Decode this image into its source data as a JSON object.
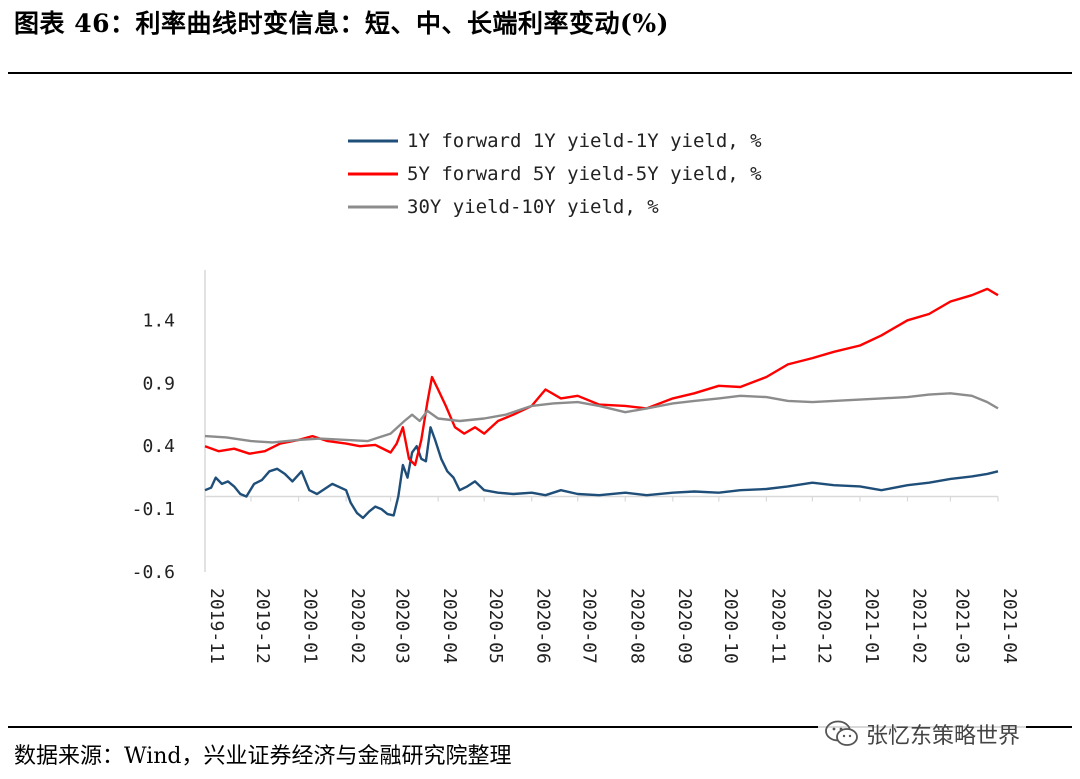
{
  "header": {
    "title": "图表 46：利率曲线时变信息：短、中、长端利率变动(%)"
  },
  "footer": {
    "source": "数据来源：Wind，兴业证券经济与金融研究院整理",
    "watermark": "张忆东策略世界",
    "watermark_icon": "wechat-icon"
  },
  "colors": {
    "series1": "#1f4e79",
    "series2": "#ff0000",
    "series3": "#8c8c8c",
    "axis": "#d9d9d9"
  },
  "chart_data": {
    "type": "line",
    "title": "",
    "xlabel": "",
    "ylabel": "",
    "ylim": [
      -0.6,
      1.8
    ],
    "yticks": [
      "1.4",
      "0.9",
      "0.4",
      "-0.1",
      "-0.6"
    ],
    "ytick_values": [
      1.4,
      0.9,
      0.4,
      -0.1,
      -0.6
    ],
    "xticks": [
      "2019-11",
      "2019-12",
      "2020-01",
      "2020-02",
      "2020-03",
      "2020-04",
      "2020-05",
      "2020-06",
      "2020-07",
      "2020-08",
      "2020-09",
      "2020-10",
      "2020-11",
      "2020-12",
      "2021-01",
      "2021-02",
      "2021-03",
      "2021-04"
    ],
    "legend_position": "top",
    "grid": false,
    "series": [
      {
        "name": "1Y forward 1Y yield-1Y yield, %",
        "color": "#1f4e79",
        "points": [
          [
            "2019-11-01",
            0.05
          ],
          [
            "2019-11-05",
            0.07
          ],
          [
            "2019-11-08",
            0.15
          ],
          [
            "2019-11-12",
            0.1
          ],
          [
            "2019-11-16",
            0.12
          ],
          [
            "2019-11-20",
            0.08
          ],
          [
            "2019-11-24",
            0.02
          ],
          [
            "2019-11-28",
            0.0
          ],
          [
            "2019-12-03",
            0.1
          ],
          [
            "2019-12-08",
            0.13
          ],
          [
            "2019-12-13",
            0.2
          ],
          [
            "2019-12-18",
            0.22
          ],
          [
            "2019-12-23",
            0.18
          ],
          [
            "2019-12-28",
            0.12
          ],
          [
            "2020-01-03",
            0.2
          ],
          [
            "2020-01-08",
            0.05
          ],
          [
            "2020-01-13",
            0.02
          ],
          [
            "2020-01-18",
            0.06
          ],
          [
            "2020-01-23",
            0.1
          ],
          [
            "2020-02-01",
            0.05
          ],
          [
            "2020-02-04",
            -0.05
          ],
          [
            "2020-02-08",
            -0.13
          ],
          [
            "2020-02-12",
            -0.17
          ],
          [
            "2020-02-16",
            -0.12
          ],
          [
            "2020-02-20",
            -0.08
          ],
          [
            "2020-02-24",
            -0.1
          ],
          [
            "2020-02-28",
            -0.14
          ],
          [
            "2020-03-03",
            -0.15
          ],
          [
            "2020-03-06",
            0.0
          ],
          [
            "2020-03-09",
            0.25
          ],
          [
            "2020-03-12",
            0.15
          ],
          [
            "2020-03-15",
            0.35
          ],
          [
            "2020-03-18",
            0.4
          ],
          [
            "2020-03-21",
            0.3
          ],
          [
            "2020-03-24",
            0.28
          ],
          [
            "2020-03-27",
            0.55
          ],
          [
            "2020-03-30",
            0.45
          ],
          [
            "2020-04-03",
            0.3
          ],
          [
            "2020-04-07",
            0.2
          ],
          [
            "2020-04-11",
            0.15
          ],
          [
            "2020-04-15",
            0.05
          ],
          [
            "2020-04-20",
            0.08
          ],
          [
            "2020-04-25",
            0.12
          ],
          [
            "2020-05-01",
            0.05
          ],
          [
            "2020-05-10",
            0.03
          ],
          [
            "2020-05-20",
            0.02
          ],
          [
            "2020-06-01",
            0.03
          ],
          [
            "2020-06-10",
            0.01
          ],
          [
            "2020-06-20",
            0.05
          ],
          [
            "2020-07-01",
            0.02
          ],
          [
            "2020-07-15",
            0.01
          ],
          [
            "2020-08-01",
            0.03
          ],
          [
            "2020-08-15",
            0.01
          ],
          [
            "2020-09-01",
            0.03
          ],
          [
            "2020-09-15",
            0.04
          ],
          [
            "2020-10-01",
            0.03
          ],
          [
            "2020-10-15",
            0.05
          ],
          [
            "2020-11-01",
            0.06
          ],
          [
            "2020-11-15",
            0.08
          ],
          [
            "2020-12-01",
            0.11
          ],
          [
            "2020-12-15",
            0.09
          ],
          [
            "2021-01-01",
            0.08
          ],
          [
            "2021-01-15",
            0.05
          ],
          [
            "2021-02-01",
            0.09
          ],
          [
            "2021-02-15",
            0.11
          ],
          [
            "2021-03-01",
            0.14
          ],
          [
            "2021-03-15",
            0.16
          ],
          [
            "2021-03-25",
            0.18
          ],
          [
            "2021-04-01",
            0.2
          ]
        ]
      },
      {
        "name": "5Y forward 5Y yield-5Y yield, %",
        "color": "#ff0000",
        "points": [
          [
            "2019-11-01",
            0.4
          ],
          [
            "2019-11-10",
            0.36
          ],
          [
            "2019-11-20",
            0.38
          ],
          [
            "2019-11-30",
            0.34
          ],
          [
            "2019-12-10",
            0.36
          ],
          [
            "2019-12-20",
            0.42
          ],
          [
            "2020-01-01",
            0.45
          ],
          [
            "2020-01-10",
            0.48
          ],
          [
            "2020-01-20",
            0.44
          ],
          [
            "2020-02-01",
            0.42
          ],
          [
            "2020-02-10",
            0.4
          ],
          [
            "2020-02-20",
            0.41
          ],
          [
            "2020-03-01",
            0.35
          ],
          [
            "2020-03-05",
            0.42
          ],
          [
            "2020-03-09",
            0.55
          ],
          [
            "2020-03-13",
            0.3
          ],
          [
            "2020-03-17",
            0.25
          ],
          [
            "2020-03-21",
            0.45
          ],
          [
            "2020-03-25",
            0.75
          ],
          [
            "2020-03-28",
            0.95
          ],
          [
            "2020-04-01",
            0.85
          ],
          [
            "2020-04-06",
            0.72
          ],
          [
            "2020-04-12",
            0.55
          ],
          [
            "2020-04-18",
            0.5
          ],
          [
            "2020-04-25",
            0.55
          ],
          [
            "2020-05-01",
            0.5
          ],
          [
            "2020-05-10",
            0.6
          ],
          [
            "2020-05-20",
            0.65
          ],
          [
            "2020-06-01",
            0.72
          ],
          [
            "2020-06-10",
            0.85
          ],
          [
            "2020-06-20",
            0.78
          ],
          [
            "2020-07-01",
            0.8
          ],
          [
            "2020-07-15",
            0.73
          ],
          [
            "2020-08-01",
            0.72
          ],
          [
            "2020-08-15",
            0.7
          ],
          [
            "2020-09-01",
            0.78
          ],
          [
            "2020-09-15",
            0.82
          ],
          [
            "2020-10-01",
            0.88
          ],
          [
            "2020-10-15",
            0.87
          ],
          [
            "2020-11-01",
            0.95
          ],
          [
            "2020-11-15",
            1.05
          ],
          [
            "2020-12-01",
            1.1
          ],
          [
            "2020-12-15",
            1.15
          ],
          [
            "2021-01-01",
            1.2
          ],
          [
            "2021-01-15",
            1.28
          ],
          [
            "2021-02-01",
            1.4
          ],
          [
            "2021-02-15",
            1.45
          ],
          [
            "2021-03-01",
            1.55
          ],
          [
            "2021-03-15",
            1.6
          ],
          [
            "2021-03-25",
            1.65
          ],
          [
            "2021-04-01",
            1.6
          ]
        ]
      },
      {
        "name": "30Y yield-10Y yield, %",
        "color": "#8c8c8c",
        "points": [
          [
            "2019-11-01",
            0.48
          ],
          [
            "2019-11-15",
            0.47
          ],
          [
            "2019-12-01",
            0.44
          ],
          [
            "2019-12-15",
            0.43
          ],
          [
            "2020-01-01",
            0.45
          ],
          [
            "2020-01-15",
            0.46
          ],
          [
            "2020-02-01",
            0.45
          ],
          [
            "2020-02-15",
            0.44
          ],
          [
            "2020-03-01",
            0.5
          ],
          [
            "2020-03-10",
            0.6
          ],
          [
            "2020-03-15",
            0.65
          ],
          [
            "2020-03-20",
            0.6
          ],
          [
            "2020-03-25",
            0.68
          ],
          [
            "2020-04-01",
            0.62
          ],
          [
            "2020-04-15",
            0.6
          ],
          [
            "2020-05-01",
            0.62
          ],
          [
            "2020-05-15",
            0.65
          ],
          [
            "2020-06-01",
            0.72
          ],
          [
            "2020-06-15",
            0.74
          ],
          [
            "2020-07-01",
            0.75
          ],
          [
            "2020-07-15",
            0.72
          ],
          [
            "2020-08-01",
            0.67
          ],
          [
            "2020-08-15",
            0.7
          ],
          [
            "2020-09-01",
            0.74
          ],
          [
            "2020-09-15",
            0.76
          ],
          [
            "2020-10-01",
            0.78
          ],
          [
            "2020-10-15",
            0.8
          ],
          [
            "2020-11-01",
            0.79
          ],
          [
            "2020-11-15",
            0.76
          ],
          [
            "2020-12-01",
            0.75
          ],
          [
            "2020-12-15",
            0.76
          ],
          [
            "2021-01-01",
            0.77
          ],
          [
            "2021-01-15",
            0.78
          ],
          [
            "2021-02-01",
            0.79
          ],
          [
            "2021-02-15",
            0.81
          ],
          [
            "2021-03-01",
            0.82
          ],
          [
            "2021-03-15",
            0.8
          ],
          [
            "2021-03-25",
            0.75
          ],
          [
            "2021-04-01",
            0.7
          ]
        ]
      }
    ]
  }
}
